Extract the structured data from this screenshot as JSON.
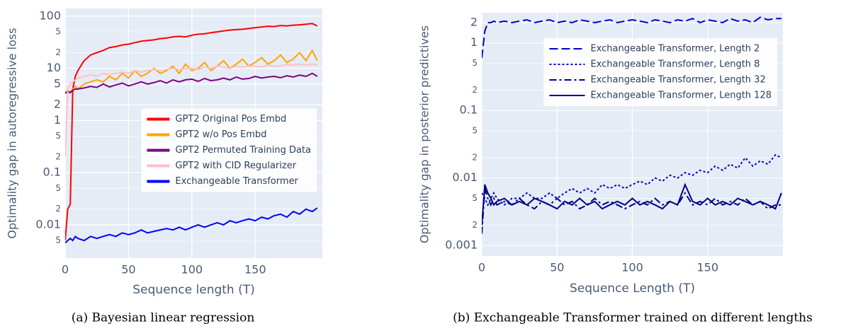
{
  "chart_data": [
    {
      "type": "line",
      "xlabel": "Sequence length (T)",
      "ylabel": "Optimality gap in autoregressive loss",
      "caption": "(a) Bayesian linear regression",
      "log_y": true,
      "grid": true,
      "legend": "right",
      "xlim": [
        0,
        203
      ],
      "xticks": [
        0,
        50,
        100,
        150
      ],
      "ylim": [
        0.0023,
        140
      ],
      "yticks": [
        100,
        {
          "value": 50,
          "label": "5"
        },
        {
          "value": 20,
          "label": "2"
        },
        10,
        5,
        2,
        1,
        {
          "value": 0.5,
          "label": "5"
        },
        {
          "value": 0.2,
          "label": "2"
        },
        0.1,
        {
          "value": 0.05,
          "label": "5"
        },
        {
          "value": 0.02,
          "label": "2"
        },
        0.01,
        {
          "value": 0.005,
          "label": "5"
        }
      ],
      "x": [
        0,
        2,
        4,
        6,
        8,
        10,
        15,
        20,
        25,
        30,
        35,
        40,
        45,
        50,
        55,
        60,
        65,
        70,
        75,
        80,
        85,
        90,
        95,
        100,
        105,
        110,
        115,
        120,
        125,
        130,
        135,
        140,
        145,
        150,
        155,
        160,
        165,
        170,
        175,
        180,
        185,
        190,
        195,
        199
      ],
      "series": [
        {
          "name": "GPT2 Original Pos Embd",
          "color": "#ff0000",
          "dash": "solid",
          "values": [
            0.005,
            0.02,
            0.025,
            4,
            7,
            9,
            14,
            18,
            20,
            22,
            25,
            26,
            28,
            29,
            31,
            33,
            34,
            35,
            37,
            38,
            40,
            41,
            40,
            43,
            45,
            46,
            48,
            50,
            52,
            54,
            55,
            56,
            58,
            60,
            62,
            64,
            63,
            66,
            65,
            67,
            68,
            70,
            72,
            65
          ]
        },
        {
          "name": "GPT2 w/o Pos Embd",
          "color": "#ffa500",
          "dash": "solid",
          "values": [
            3.5,
            3.8,
            3.5,
            4,
            4.5,
            4,
            5,
            5.5,
            6,
            5.5,
            7,
            6,
            8,
            6.5,
            9,
            7,
            8,
            10,
            8,
            9,
            11,
            8,
            12,
            9,
            10,
            13,
            9,
            11,
            14,
            10,
            12,
            15,
            11,
            13,
            16,
            12,
            14,
            18,
            13,
            15,
            20,
            14,
            22,
            14
          ]
        },
        {
          "name": "GPT2 Permuted Training Data",
          "color": "#800080",
          "dash": "solid",
          "values": [
            3.3,
            3.6,
            3.4,
            3.8,
            4,
            4,
            4.2,
            4.5,
            4.3,
            5,
            4.4,
            4.8,
            5.2,
            4.6,
            5,
            5.5,
            5,
            5.3,
            5.8,
            5.2,
            6,
            5.5,
            6,
            6.2,
            5.6,
            6.4,
            5.8,
            6,
            6.5,
            6,
            6.8,
            6.2,
            6.4,
            7,
            6.5,
            6.8,
            7,
            6.6,
            7.2,
            6.8,
            7.4,
            7,
            8,
            7
          ]
        },
        {
          "name": "GPT2 with CID Regularizer",
          "color": "#ffc0cb",
          "dash": "solid",
          "values": [
            0.2,
            4,
            5,
            5.5,
            6,
            6.5,
            7,
            7.5,
            7,
            8,
            7.5,
            8,
            8.5,
            8,
            9,
            8.5,
            9,
            9.5,
            9,
            9.5,
            10,
            9.5,
            10,
            10,
            9.5,
            10.5,
            10,
            11,
            10.5,
            10,
            11,
            10.5,
            11,
            11,
            10.5,
            11.5,
            11,
            11,
            12,
            11.5,
            12,
            11.5,
            12,
            11.5
          ]
        },
        {
          "name": "Exchangeable Transformer",
          "color": "#0000ff",
          "dash": "solid",
          "values": [
            0.0045,
            0.005,
            0.0055,
            0.005,
            0.006,
            0.0055,
            0.005,
            0.006,
            0.0055,
            0.006,
            0.0065,
            0.006,
            0.007,
            0.0065,
            0.007,
            0.008,
            0.007,
            0.0075,
            0.008,
            0.0085,
            0.008,
            0.009,
            0.008,
            0.009,
            0.01,
            0.009,
            0.01,
            0.011,
            0.01,
            0.012,
            0.011,
            0.012,
            0.013,
            0.012,
            0.014,
            0.013,
            0.015,
            0.016,
            0.014,
            0.018,
            0.016,
            0.02,
            0.018,
            0.021
          ]
        }
      ]
    },
    {
      "type": "line",
      "xlabel": "Sequence Length (T)",
      "ylabel": "Optimality gap in posterior predictives",
      "caption": "(b) Exchangeable Transformer trained on different lengths",
      "log_y": true,
      "grid": true,
      "legend": "top-right",
      "xlim": [
        0,
        200
      ],
      "xticks": [
        0,
        50,
        100,
        150
      ],
      "ylim": [
        0.0007,
        2.8
      ],
      "yticks": [
        2,
        1,
        {
          "value": 0.5,
          "label": "5"
        },
        {
          "value": 0.2,
          "label": "2"
        },
        0.1,
        {
          "value": 0.05,
          "label": "5"
        },
        {
          "value": 0.02,
          "label": "2"
        },
        0.01,
        {
          "value": 0.005,
          "label": "5"
        },
        {
          "value": 0.002,
          "label": "2"
        },
        0.001
      ],
      "x": [
        0,
        2,
        4,
        6,
        8,
        10,
        15,
        20,
        25,
        30,
        35,
        40,
        45,
        50,
        55,
        60,
        65,
        70,
        75,
        80,
        85,
        90,
        95,
        100,
        105,
        110,
        115,
        120,
        125,
        130,
        135,
        140,
        145,
        150,
        155,
        160,
        165,
        170,
        175,
        180,
        185,
        190,
        195,
        199
      ],
      "series": [
        {
          "name": "Exchangeable Transformer, Length 2",
          "color": "#0000cd",
          "dash": "dash",
          "values": [
            0.6,
            1.5,
            2,
            2,
            2.1,
            2,
            2.1,
            2,
            2.1,
            2.2,
            2,
            2.1,
            2.2,
            2,
            2.1,
            2,
            2.2,
            2.1,
            2,
            2.1,
            2.2,
            2,
            2.1,
            2.2,
            2.1,
            2,
            2.2,
            2.1,
            2,
            2.2,
            2.1,
            2.3,
            2,
            2.2,
            2.1,
            2,
            2.3,
            2.1,
            2.2,
            2,
            2.4,
            2.2,
            2.3,
            2.3
          ]
        },
        {
          "name": "Exchangeable Transformer, Length 8",
          "color": "#0000cd",
          "dash": "dot",
          "values": [
            0.006,
            0.005,
            0.004,
            0.005,
            0.006,
            0.005,
            0.004,
            0.005,
            0.005,
            0.006,
            0.005,
            0.005,
            0.006,
            0.005,
            0.006,
            0.007,
            0.006,
            0.007,
            0.006,
            0.008,
            0.007,
            0.008,
            0.007,
            0.008,
            0.009,
            0.008,
            0.01,
            0.009,
            0.011,
            0.01,
            0.012,
            0.011,
            0.013,
            0.012,
            0.015,
            0.013,
            0.016,
            0.014,
            0.02,
            0.015,
            0.018,
            0.016,
            0.022,
            0.02
          ]
        },
        {
          "name": "Exchangeable Transformer, Length 32",
          "color": "#00008b",
          "dash": "dashdot",
          "values": [
            0.0015,
            0.007,
            0.005,
            0.004,
            0.005,
            0.004,
            0.0045,
            0.004,
            0.005,
            0.004,
            0.0035,
            0.0045,
            0.004,
            0.005,
            0.004,
            0.0045,
            0.0035,
            0.004,
            0.005,
            0.004,
            0.0045,
            0.004,
            0.0035,
            0.004,
            0.0045,
            0.004,
            0.005,
            0.004,
            0.0045,
            0.004,
            0.006,
            0.004,
            0.0045,
            0.004,
            0.005,
            0.004,
            0.0045,
            0.004,
            0.005,
            0.004,
            0.0045,
            0.0035,
            0.004,
            0.004
          ]
        },
        {
          "name": "Exchangeable Transformer, Length 128",
          "color": "#000080",
          "dash": "solid",
          "values": [
            0.002,
            0.008,
            0.006,
            0.005,
            0.004,
            0.0045,
            0.005,
            0.004,
            0.0045,
            0.004,
            0.005,
            0.0045,
            0.004,
            0.0035,
            0.0045,
            0.004,
            0.005,
            0.004,
            0.0045,
            0.0035,
            0.004,
            0.0045,
            0.004,
            0.005,
            0.004,
            0.0045,
            0.004,
            0.0035,
            0.0045,
            0.004,
            0.008,
            0.0045,
            0.004,
            0.005,
            0.004,
            0.0045,
            0.004,
            0.005,
            0.0045,
            0.004,
            0.0045,
            0.004,
            0.0035,
            0.006
          ]
        }
      ]
    }
  ]
}
